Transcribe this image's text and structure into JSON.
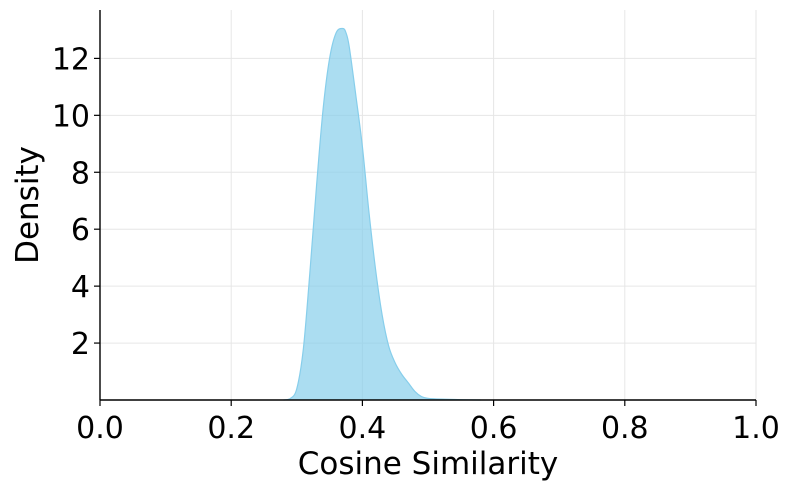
{
  "chart_data": {
    "type": "area",
    "title": "",
    "xlabel": "Cosine Similarity",
    "ylabel": "Density",
    "xlim": [
      0.0,
      1.0
    ],
    "ylim": [
      0,
      13.7
    ],
    "xticks": [
      0.0,
      0.2,
      0.4,
      0.6,
      0.8,
      1.0
    ],
    "xtick_labels": [
      "0.0",
      "0.2",
      "0.4",
      "0.6",
      "0.8",
      "1.0"
    ],
    "yticks": [
      2,
      4,
      6,
      8,
      10,
      12
    ],
    "ytick_labels": [
      "2",
      "4",
      "6",
      "8",
      "10",
      "12"
    ],
    "grid": true,
    "fill_color": "#87ceeb",
    "line_color": "#87ceeb",
    "series": [
      {
        "x": [
          0.28,
          0.29,
          0.3,
          0.31,
          0.32,
          0.33,
          0.34,
          0.35,
          0.36,
          0.37,
          0.375,
          0.38,
          0.39,
          0.4,
          0.41,
          0.42,
          0.43,
          0.44,
          0.45,
          0.46,
          0.47,
          0.48,
          0.49,
          0.5,
          0.52,
          0.55,
          0.58
        ],
        "y": [
          0.0,
          0.05,
          0.4,
          1.8,
          4.5,
          7.5,
          10.2,
          12.0,
          12.9,
          13.05,
          12.9,
          12.4,
          10.7,
          8.9,
          6.6,
          4.6,
          3.0,
          1.9,
          1.3,
          0.9,
          0.6,
          0.3,
          0.12,
          0.06,
          0.03,
          0.01,
          0.0
        ]
      }
    ]
  }
}
